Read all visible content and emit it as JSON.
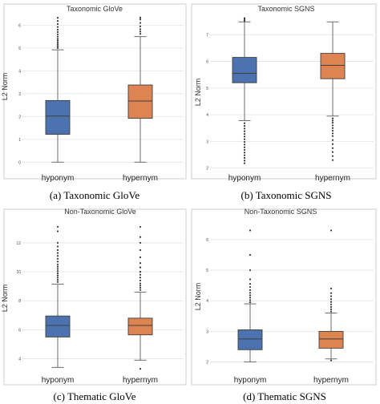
{
  "figure": {
    "panels": [
      {
        "caption": "(a) Taxonomic GloVe"
      },
      {
        "caption": "(b) Taxonomic SGNS"
      },
      {
        "caption": "(c) Thematic GloVe"
      },
      {
        "caption": "(d) Thematic SGNS"
      }
    ]
  },
  "colors": {
    "hyponym": "#4c72b0",
    "hypernym": "#dd8452",
    "grid": "#e3e3e3",
    "frame": "#cccccc",
    "whisker": "#6b6b6b"
  },
  "chart_data": [
    {
      "type": "box",
      "title": "Taxonomic GloVe",
      "ylabel": "L2 Norm",
      "categories": [
        "hyponym",
        "hypernym"
      ],
      "ylim": [
        -0.2,
        6.4
      ],
      "yticks": [
        0,
        1,
        2,
        3,
        4,
        5,
        6
      ],
      "boxes": [
        {
          "category": "hyponym",
          "min": 0.0,
          "q1": 1.22,
          "median": 2.02,
          "q3": 2.7,
          "max": 4.92,
          "outliers": [
            5.0,
            5.08,
            5.16,
            5.24,
            5.32,
            5.4,
            5.5,
            5.6,
            5.7,
            5.8,
            5.92,
            6.05,
            6.18,
            6.32
          ]
        },
        {
          "category": "hypernym",
          "min": 0.0,
          "q1": 1.92,
          "median": 2.68,
          "q3": 3.38,
          "max": 5.5,
          "outliers": [
            5.62,
            5.72,
            5.82,
            5.95,
            6.1,
            6.25,
            6.33
          ]
        }
      ]
    },
    {
      "type": "box",
      "title": "Taxonomic SGNS",
      "ylabel": "L2 Norm",
      "categories": [
        "hyponym",
        "hypernym"
      ],
      "ylim": [
        1.9,
        7.7
      ],
      "yticks": [
        2,
        3,
        4,
        5,
        6,
        7
      ],
      "boxes": [
        {
          "category": "hyponym",
          "min": 3.78,
          "q1": 5.2,
          "median": 5.55,
          "q3": 6.15,
          "max": 7.48,
          "outliers": [
            2.18,
            2.28,
            2.38,
            2.48,
            2.58,
            2.68,
            2.78,
            2.88,
            2.98,
            3.08,
            3.18,
            3.28,
            3.38,
            3.48,
            3.58,
            3.68,
            7.52,
            7.58,
            7.62
          ]
        },
        {
          "category": "hypernym",
          "min": 3.95,
          "q1": 5.35,
          "median": 5.85,
          "q3": 6.3,
          "max": 7.48,
          "outliers": [
            2.3,
            2.45,
            2.6,
            2.75,
            2.9,
            3.05,
            3.2,
            3.3,
            3.4,
            3.5,
            3.6,
            3.7,
            3.78,
            3.86
          ]
        }
      ]
    },
    {
      "type": "box",
      "title": "Non-Taxonomic GloVe",
      "ylabel": "L2 Norm",
      "categories": [
        "hyponym",
        "hypernym"
      ],
      "ylim": [
        3.2,
        13.6
      ],
      "yticks": [
        4,
        6,
        8,
        10,
        12
      ],
      "boxes": [
        {
          "category": "hyponym",
          "min": 3.4,
          "q1": 5.5,
          "median": 6.3,
          "q3": 6.95,
          "max": 9.15,
          "outliers": [
            9.3,
            9.45,
            9.6,
            9.75,
            9.9,
            10.05,
            10.2,
            10.35,
            10.5,
            10.7,
            10.9,
            11.1,
            11.3,
            11.5,
            11.75,
            12.0,
            12.8,
            13.1
          ]
        },
        {
          "category": "hypernym",
          "min": 3.9,
          "q1": 5.65,
          "median": 6.3,
          "q3": 6.8,
          "max": 8.6,
          "outliers": [
            3.3,
            8.75,
            8.9,
            9.05,
            9.2,
            9.4,
            9.6,
            9.8,
            10.0,
            10.3,
            10.6,
            11.0,
            11.5,
            12.0,
            12.4,
            13.1
          ]
        }
      ]
    },
    {
      "type": "box",
      "title": "Non-Taxonomic SGNS",
      "ylabel": "L2 Norm",
      "categories": [
        "hyponym",
        "hypernym"
      ],
      "ylim": [
        1.7,
        6.6
      ],
      "yticks": [
        2,
        3,
        4,
        5,
        6
      ],
      "boxes": [
        {
          "category": "hyponym",
          "min": 2.0,
          "q1": 2.4,
          "median": 2.75,
          "q3": 3.05,
          "max": 3.9,
          "outliers": [
            3.95,
            4.02,
            4.1,
            4.18,
            4.26,
            4.35,
            4.45,
            4.55,
            4.7,
            5.0,
            5.5,
            6.3
          ]
        },
        {
          "category": "hypernym",
          "min": 2.1,
          "q1": 2.45,
          "median": 2.75,
          "q3": 3.0,
          "max": 3.6,
          "outliers": [
            2.05,
            3.65,
            3.72,
            3.8,
            3.88,
            3.96,
            4.05,
            4.15,
            4.25,
            4.4,
            6.3
          ]
        }
      ]
    }
  ]
}
